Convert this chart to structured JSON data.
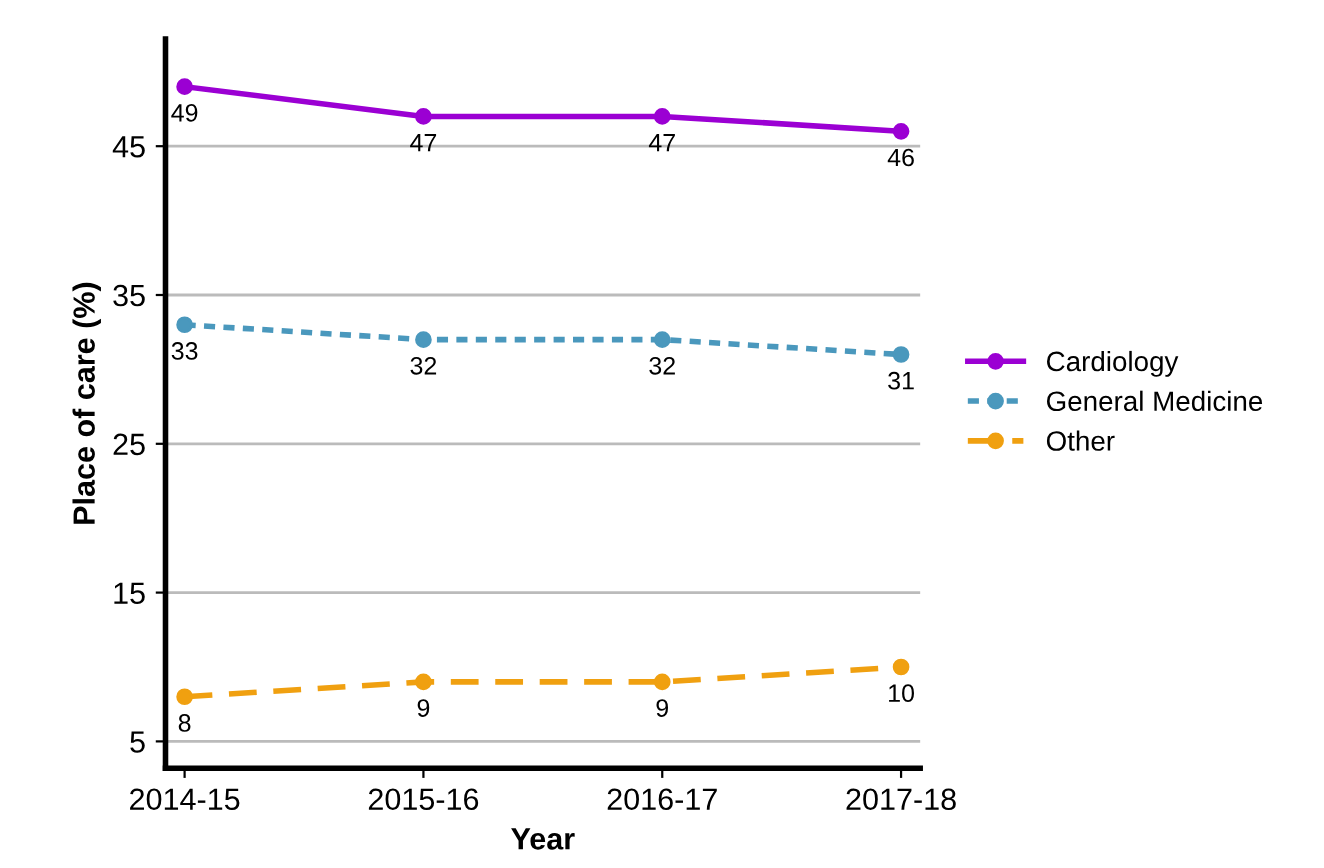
{
  "chart_data": {
    "type": "line",
    "xlabel": "Year",
    "ylabel": "Place of care (%)",
    "categories": [
      "2014-15",
      "2015-16",
      "2016-17",
      "2017-18"
    ],
    "series": [
      {
        "name": "Cardiology",
        "color": "#9b00d3",
        "values": [
          49,
          47,
          47,
          46
        ],
        "line_style": "solid"
      },
      {
        "name": "General Medicine",
        "color": "#4a98bd",
        "values": [
          33,
          32,
          32,
          31
        ],
        "line_style": "dotted"
      },
      {
        "name": "Other",
        "color": "#f0a010",
        "values": [
          8,
          9,
          9,
          10
        ],
        "line_style": "dashed"
      }
    ],
    "ylim": [
      3.2,
      52.2
    ],
    "yticks": [
      5,
      15,
      25,
      35,
      45
    ],
    "grid": "y",
    "legend": "right",
    "marker": "circle",
    "data_labels": true
  }
}
